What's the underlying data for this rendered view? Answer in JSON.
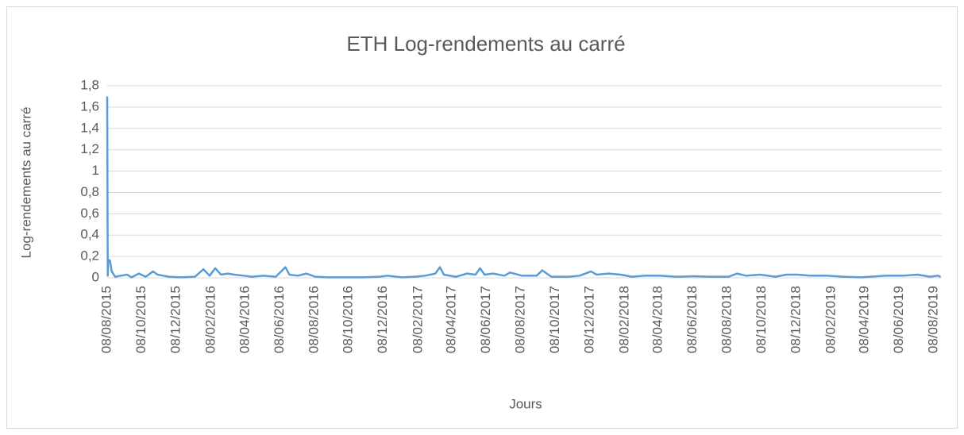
{
  "chart_data": {
    "type": "line",
    "title": "ETH Log-rendements au carré",
    "x_label": "Jours",
    "y_label": "Log-rendements au carré",
    "x": [
      "08/08/2015",
      "09/08/2015",
      "10/08/2015",
      "13/08/2015",
      "16/08/2015",
      "22/08/2015",
      "01/09/2015",
      "12/09/2015",
      "20/09/2015",
      "03/10/2015",
      "15/10/2015",
      "28/10/2015",
      "05/11/2015",
      "15/11/2015",
      "25/11/2015",
      "15/12/2015",
      "10/01/2016",
      "25/01/2016",
      "05/02/2016",
      "15/02/2016",
      "25/02/2016",
      "08/03/2016",
      "20/03/2016",
      "05/04/2016",
      "20/04/2016",
      "10/05/2016",
      "01/06/2016",
      "18/06/2016",
      "25/06/2016",
      "10/07/2016",
      "25/07/2016",
      "10/08/2016",
      "01/09/2016",
      "01/10/2016",
      "01/11/2016",
      "01/12/2016",
      "15/12/2016",
      "10/01/2017",
      "01/02/2017",
      "20/02/2017",
      "10/03/2017",
      "18/03/2017",
      "25/03/2017",
      "15/04/2017",
      "05/05/2017",
      "20/05/2017",
      "28/05/2017",
      "05/06/2017",
      "20/06/2017",
      "10/07/2017",
      "20/07/2017",
      "10/08/2017",
      "05/09/2017",
      "15/09/2017",
      "01/10/2017",
      "01/11/2017",
      "20/11/2017",
      "10/12/2017",
      "20/12/2017",
      "10/01/2018",
      "01/02/2018",
      "20/02/2018",
      "15/03/2018",
      "10/04/2018",
      "10/05/2018",
      "10/06/2018",
      "10/07/2018",
      "10/08/2018",
      "25/08/2018",
      "10/09/2018",
      "05/10/2018",
      "01/11/2018",
      "20/11/2018",
      "10/12/2018",
      "01/01/2019",
      "01/02/2019",
      "01/03/2019",
      "01/04/2019",
      "15/05/2019",
      "15/06/2019",
      "10/07/2019",
      "01/08/2019",
      "15/08/2019",
      "20/08/2019"
    ],
    "series": [
      {
        "name": "Log-rendements au carré",
        "color": "#5b9bd5",
        "values": [
          1.7,
          0.02,
          0.17,
          0.16,
          0.06,
          0.01,
          0.02,
          0.03,
          0.005,
          0.04,
          0.01,
          0.06,
          0.03,
          0.02,
          0.01,
          0.005,
          0.01,
          0.08,
          0.02,
          0.09,
          0.03,
          0.04,
          0.03,
          0.02,
          0.01,
          0.02,
          0.01,
          0.1,
          0.03,
          0.02,
          0.04,
          0.01,
          0.005,
          0.005,
          0.005,
          0.01,
          0.02,
          0.005,
          0.01,
          0.02,
          0.04,
          0.1,
          0.03,
          0.01,
          0.04,
          0.03,
          0.09,
          0.03,
          0.04,
          0.02,
          0.05,
          0.02,
          0.02,
          0.07,
          0.01,
          0.01,
          0.02,
          0.06,
          0.03,
          0.04,
          0.03,
          0.01,
          0.02,
          0.02,
          0.01,
          0.015,
          0.01,
          0.01,
          0.04,
          0.02,
          0.03,
          0.01,
          0.03,
          0.03,
          0.02,
          0.02,
          0.01,
          0.005,
          0.02,
          0.02,
          0.03,
          0.01,
          0.02,
          0.01
        ]
      }
    ],
    "xlim": [
      "08/08/2015",
      "22/08/2019"
    ],
    "xticks": [
      "08/08/2015",
      "08/10/2015",
      "08/12/2015",
      "08/02/2016",
      "08/04/2016",
      "08/06/2016",
      "08/08/2016",
      "08/10/2016",
      "08/12/2016",
      "08/02/2017",
      "08/04/2017",
      "08/06/2017",
      "08/08/2017",
      "08/10/2017",
      "08/12/2017",
      "08/02/2018",
      "08/04/2018",
      "08/06/2018",
      "08/08/2018",
      "08/10/2018",
      "08/12/2018",
      "08/02/2019",
      "08/04/2019",
      "08/06/2019",
      "08/08/2019"
    ],
    "ylim": [
      0,
      1.8
    ],
    "yticks": [
      0,
      {
        "value": 0.2,
        "label": "0,2"
      },
      {
        "value": 0.4,
        "label": "0,4"
      },
      {
        "value": 0.6,
        "label": "0,6"
      },
      {
        "value": 0.8,
        "label": "0,8"
      },
      1,
      {
        "value": 1.2,
        "label": "1,2"
      },
      {
        "value": 1.4,
        "label": "1,4"
      },
      {
        "value": 1.6,
        "label": "1,6"
      },
      {
        "value": 1.8,
        "label": "1,8"
      }
    ],
    "grid": true
  }
}
